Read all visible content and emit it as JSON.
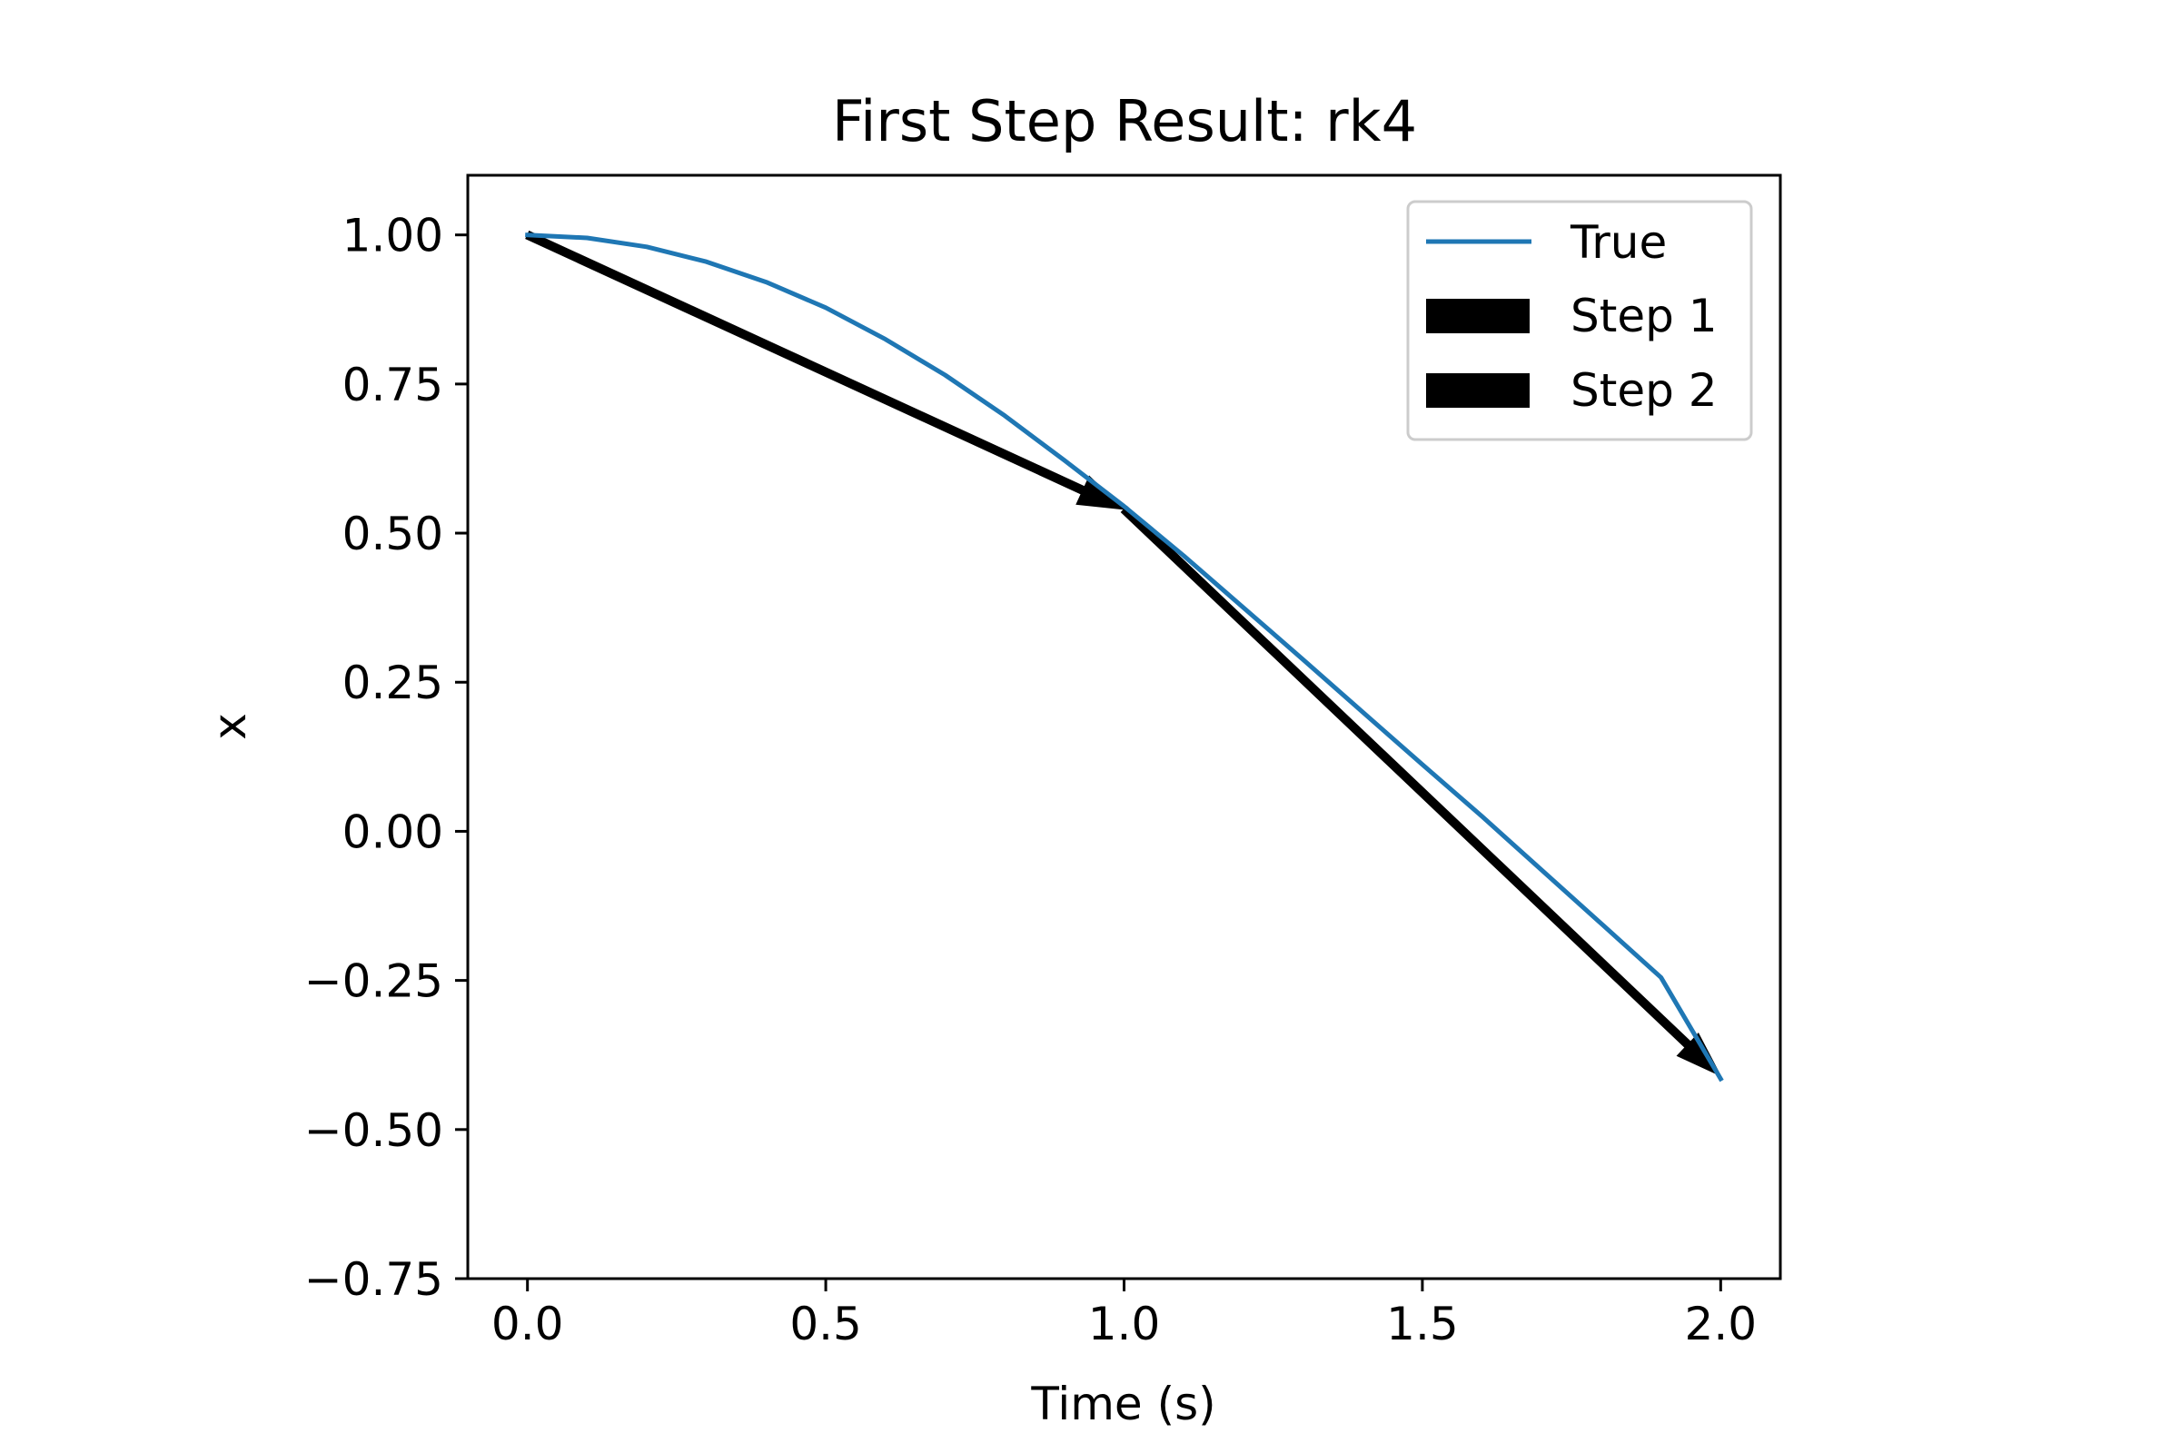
{
  "chart_data": {
    "type": "line",
    "title": "First Step Result: rk4",
    "xlabel": "Time (s)",
    "ylabel": "x",
    "xlim": [
      -0.1,
      2.1
    ],
    "ylim": [
      -0.75,
      1.1
    ],
    "xticks": [
      0.0,
      0.5,
      1.0,
      1.5,
      2.0
    ],
    "xtick_labels": [
      "0.0",
      "0.5",
      "1.0",
      "1.5",
      "2.0"
    ],
    "yticks": [
      1.0,
      0.75,
      0.5,
      0.25,
      0.0,
      -0.25,
      -0.5,
      -0.75
    ],
    "ytick_labels": [
      "1.00",
      "0.75",
      "0.50",
      "0.25",
      "0.00",
      "−0.25",
      "−0.50",
      "−0.75"
    ],
    "grid": false,
    "legend": {
      "position": "top-right"
    },
    "series": [
      {
        "name": "True",
        "kind": "line",
        "color": "#1f77b4",
        "x": [
          0.0,
          0.1,
          0.2,
          0.3,
          0.4,
          0.5,
          0.6,
          0.7,
          0.8,
          0.9,
          1.0,
          1.1,
          1.2,
          1.3,
          1.4,
          1.5,
          1.6,
          1.7,
          1.8,
          1.9,
          2.0
        ],
        "y": [
          1.0,
          0.995,
          0.98,
          0.955,
          0.921,
          0.878,
          0.825,
          0.765,
          0.697,
          0.622,
          0.545,
          0.462,
          0.375,
          0.288,
          0.2,
          0.112,
          0.025,
          -0.065,
          -0.155,
          -0.245,
          -0.415
        ]
      },
      {
        "name": "Step 1",
        "kind": "arrow",
        "color": "#000000",
        "start": [
          0.0,
          1.0
        ],
        "end": [
          1.0,
          0.54
        ]
      },
      {
        "name": "Step 2",
        "kind": "arrow",
        "color": "#000000",
        "start": [
          1.0,
          0.54
        ],
        "end": [
          2.0,
          -0.41
        ]
      }
    ]
  }
}
